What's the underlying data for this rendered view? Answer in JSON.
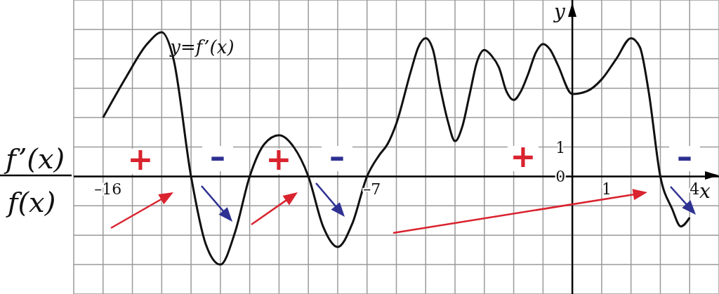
{
  "chart_data": {
    "type": "line",
    "xlabel": "x",
    "ylabel": "y",
    "x": [
      -16,
      -15.2,
      -14.5,
      -14,
      -13.6,
      -13,
      -12.5,
      -12,
      -11.5,
      -11,
      -10.5,
      -10,
      -9.5,
      -9,
      -8.5,
      -8,
      -7.5,
      -7,
      -6.6,
      -6.3,
      -6,
      -5.5,
      -5.25,
      -5,
      -4.75,
      -4.5,
      -4.25,
      -4,
      -3.75,
      -3.5,
      -3.25,
      -3,
      -2.75,
      -2.5,
      -2.25,
      -2,
      -1.75,
      -1.5,
      -1.25,
      -1,
      -0.75,
      -0.5,
      0,
      0.5,
      1,
      1.5,
      2,
      2.3,
      2.6,
      3,
      3.4,
      3.7,
      4
    ],
    "series": [
      {
        "name": "y=f’(x)",
        "color": "#111111",
        "values": [
          2,
          3.4,
          4.5,
          4.9,
          4,
          0,
          -2.3,
          -3,
          -1.9,
          0,
          1.1,
          1.4,
          1,
          0,
          -1.7,
          -2.4,
          -1.6,
          0,
          0.7,
          1.1,
          1.8,
          3.6,
          4.4,
          4.7,
          4.3,
          3,
          1.9,
          1.2,
          1.7,
          2.8,
          3.9,
          4.3,
          4.1,
          3.7,
          2.9,
          2.6,
          2.9,
          3.5,
          4.2,
          4.5,
          4.3,
          3.8,
          2.8,
          2.9,
          3.3,
          4,
          4.7,
          4.4,
          2.9,
          0,
          -1.1,
          -1.7,
          -1.4
        ]
      }
    ],
    "xlim": [
      -17,
      5
    ],
    "xticks": [
      {
        "value": -17,
        "label": null
      },
      {
        "value": -16,
        "label": "–16"
      },
      {
        "value": -15,
        "label": null
      },
      {
        "value": -14,
        "label": null
      },
      {
        "value": -13,
        "label": null
      },
      {
        "value": -12,
        "label": null
      },
      {
        "value": -11,
        "label": null
      },
      {
        "value": -10,
        "label": null
      },
      {
        "value": -9,
        "label": null
      },
      {
        "value": -8,
        "label": null
      },
      {
        "value": -7,
        "label": "–7"
      },
      {
        "value": -6,
        "label": null
      },
      {
        "value": -5,
        "label": null
      },
      {
        "value": -4,
        "label": null
      },
      {
        "value": -3,
        "label": null
      },
      {
        "value": -2,
        "label": null
      },
      {
        "value": -1,
        "label": null
      },
      {
        "value": 0,
        "label": null
      },
      {
        "value": 1,
        "label": "1"
      },
      {
        "value": 2,
        "label": null
      },
      {
        "value": 3,
        "label": null
      },
      {
        "value": 4,
        "label": "4"
      }
    ],
    "ylim": [
      -4,
      6
    ],
    "yticks": [
      {
        "value": -3,
        "label": null
      },
      {
        "value": -2,
        "label": null
      },
      {
        "value": -1,
        "label": null
      },
      {
        "value": 0,
        "label": "0"
      },
      {
        "value": 1,
        "label": "1"
      },
      {
        "value": 2,
        "label": null
      },
      {
        "value": 3,
        "label": null
      },
      {
        "value": 4,
        "label": null
      },
      {
        "value": 5,
        "label": null
      }
    ],
    "grid": true,
    "legend": false,
    "marker": "none",
    "line_style": "solid",
    "annotations": [
      "f’(x)",
      "f(x)",
      "+",
      "–",
      "+",
      "–",
      "+",
      "–"
    ]
  }
}
